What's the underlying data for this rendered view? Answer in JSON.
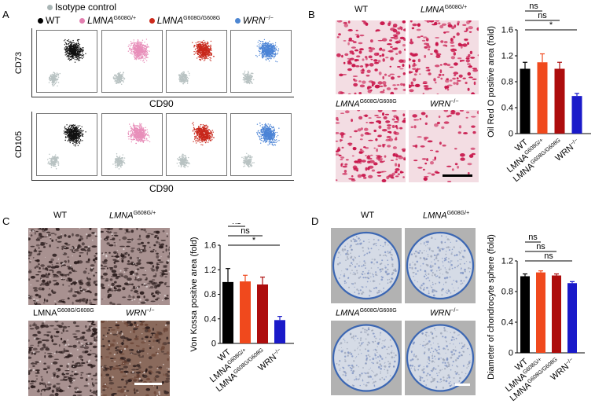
{
  "panelA": {
    "label": "A",
    "legend": [
      {
        "label": "Isotype control",
        "color": "#a9b5b5"
      },
      {
        "label": "WT",
        "color": "#000000"
      },
      {
        "gene": "LMNA",
        "sup": "G608G/+",
        "color": "#e27fb0"
      },
      {
        "gene": "LMNA",
        "sup": "G608G/G608G",
        "color": "#cc2a1c"
      },
      {
        "gene": "WRN",
        "sup": "−/−",
        "color": "#4d86d2"
      }
    ],
    "row1_ylabel": "CD73",
    "row1_xlabel": "CD90",
    "row2_ylabel": "CD105",
    "row2_xlabel": "CD90",
    "colors": [
      "#111111",
      "#e88fba",
      "#c8281c",
      "#4c84d6"
    ],
    "iso_color": "#b8c2c2"
  },
  "panelB": {
    "label": "B",
    "captions": [
      {
        "gene": "WT",
        "sup": "",
        "italic": false
      },
      {
        "gene": "LMNA",
        "sup": "G608G/+",
        "italic": true
      },
      {
        "gene": "LMNA",
        "sup": "G608G/G608G",
        "italic": true
      },
      {
        "gene": "WRN",
        "sup": "−/−",
        "italic": true
      }
    ],
    "tile_bg": "#f3dde3",
    "stain_color": "#c8154a"
  },
  "panelC": {
    "label": "C",
    "captions": [
      {
        "gene": "WT",
        "sup": "",
        "italic": false
      },
      {
        "gene": "LMNA",
        "sup": "G608G/+",
        "italic": true
      },
      {
        "gene": "LMNA",
        "sup": "G608G/G608G",
        "italic": false
      },
      {
        "gene": "WRN",
        "sup": "−/−",
        "italic": true
      }
    ],
    "tile_bg": "#a89190",
    "stain_color": "#2a1c1c"
  },
  "panelD": {
    "label": "D",
    "captions": [
      {
        "gene": "WT",
        "sup": "",
        "italic": false
      },
      {
        "gene": "LMNA",
        "sup": "G608G/+",
        "italic": true
      },
      {
        "gene": "LMNA",
        "sup": "G608G/G608G",
        "italic": true
      },
      {
        "gene": "WRN",
        "sup": "−/−",
        "italic": true
      }
    ],
    "tile_bg": "#b2b2b2",
    "sphere_color": "#d5dbe6",
    "rim_color": "#3c67b3"
  },
  "chart_data": [
    {
      "type": "bar",
      "panel": "B",
      "ylabel": "Oil Red O positive area (fold)",
      "categories": [
        "WT",
        "LMNA G608G/+",
        "LMNA G608G/G608G",
        "WRN −/−"
      ],
      "values": [
        1.0,
        1.1,
        1.0,
        0.58
      ],
      "errors": [
        0.1,
        0.13,
        0.1,
        0.04
      ],
      "colors": [
        "#000000",
        "#f0491d",
        "#ad0d0d",
        "#1a1ac9"
      ],
      "ylim": [
        0,
        1.6
      ],
      "yticks": [
        0,
        0.4,
        0.8,
        1.2,
        1.6
      ],
      "yticklabels": [
        "0",
        "0.4",
        "0.8",
        "1.2",
        "1.6"
      ],
      "significance": [
        {
          "from": 0,
          "to": 1,
          "label": "ns"
        },
        {
          "from": 0,
          "to": 2,
          "label": "ns"
        },
        {
          "from": 0,
          "to": 3,
          "label": "*"
        }
      ]
    },
    {
      "type": "bar",
      "panel": "C",
      "ylabel": "Von Kossa  positive area (fold)",
      "categories": [
        "WT",
        "LMNA G608G/+",
        "LMNA G608G/G608G",
        "WRN −/−"
      ],
      "values": [
        1.0,
        1.01,
        0.96,
        0.38
      ],
      "errors": [
        0.22,
        0.1,
        0.12,
        0.06
      ],
      "colors": [
        "#000000",
        "#f0491d",
        "#ad0d0d",
        "#1a1ac9"
      ],
      "ylim": [
        0,
        1.6
      ],
      "yticks": [
        0,
        0.4,
        0.8,
        1.2,
        1.6
      ],
      "yticklabels": [
        "0",
        "0.4",
        "0.8",
        "1.2",
        "1.6"
      ],
      "significance": [
        {
          "from": 0,
          "to": 1,
          "label": "ns"
        },
        {
          "from": 0,
          "to": 2,
          "label": "ns"
        },
        {
          "from": 0,
          "to": 3,
          "label": "*"
        }
      ]
    },
    {
      "type": "bar",
      "panel": "D",
      "ylabel": "Diameter of chondrocyte sphere (fold)",
      "categories": [
        "WT",
        "LMNA G608G/+",
        "LMNA G608G/G608G",
        "WRN −/−"
      ],
      "values": [
        1.0,
        1.05,
        1.01,
        0.91
      ],
      "errors": [
        0.03,
        0.02,
        0.02,
        0.02
      ],
      "colors": [
        "#000000",
        "#f0491d",
        "#ad0d0d",
        "#1a1ac9"
      ],
      "ylim": [
        0,
        1.2
      ],
      "yticks": [
        0,
        0.4,
        0.8,
        1.2
      ],
      "yticklabels": [
        "0",
        "0.4",
        "0.8",
        "1.2"
      ],
      "significance": [
        {
          "from": 0,
          "to": 1,
          "label": "ns"
        },
        {
          "from": 0,
          "to": 2,
          "label": "ns"
        },
        {
          "from": 0,
          "to": 3,
          "label": "ns"
        }
      ]
    }
  ],
  "xticklabels": [
    {
      "gene": "WT",
      "sup": ""
    },
    {
      "gene": "LMNA",
      "sup": "G608G/+"
    },
    {
      "gene": "LMNA",
      "sup": "G608G/G608G"
    },
    {
      "gene": "WRN",
      "sup": "−/−"
    }
  ]
}
